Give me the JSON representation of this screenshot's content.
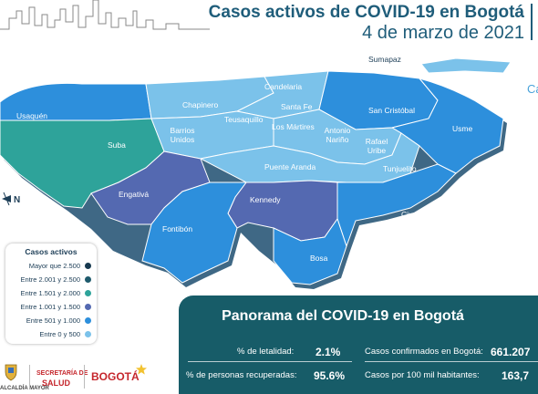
{
  "header": {
    "title": "Casos activos de COVID-19 en Bogotá",
    "subtitle": "4 de marzo de 2021",
    "side_fragment": "Ca"
  },
  "map": {
    "compass_letter": "N",
    "localities": [
      {
        "name": "Sumapaz",
        "level": "Entre 0 y 500"
      },
      {
        "name": "Candelaria",
        "level": "Entre 0 y 500"
      },
      {
        "name": "Usaquén",
        "level": "Entre 501 y 1.000"
      },
      {
        "name": "Chapinero",
        "level": "Entre 0 y 500"
      },
      {
        "name": "Santa Fe",
        "level": "Entre 0 y 500"
      },
      {
        "name": "San Cristóbal",
        "level": "Entre 501 y 1.000"
      },
      {
        "name": "Teusaquillo",
        "level": "Entre 0 y 500"
      },
      {
        "name": "Los Mártires",
        "level": "Entre 0 y 500"
      },
      {
        "name": "Antonio Nariño",
        "level": "Entre 0 y 500"
      },
      {
        "name": "Barrios Unidos",
        "level": "Entre 0 y 500"
      },
      {
        "name": "Usme",
        "level": "Entre 501 y 1.000"
      },
      {
        "name": "Suba",
        "level": "Entre 1.501 y 2.000"
      },
      {
        "name": "Rafael Uribe",
        "level": "Entre 0 y 500"
      },
      {
        "name": "Puente Aranda",
        "level": "Entre 0 y 500"
      },
      {
        "name": "Tunjuelito",
        "level": "Entre 0 y 500"
      },
      {
        "name": "Engativá",
        "level": "Entre 1.001 y 1.500"
      },
      {
        "name": "Kennedy",
        "level": "Entre 1.001 y 1.500"
      },
      {
        "name": "Ciudad Bolívar",
        "level": "Entre 501 y 1.000"
      },
      {
        "name": "Fontibón",
        "level": "Entre 501 y 1.000"
      },
      {
        "name": "Bosa",
        "level": "Entre 501 y 1.000"
      }
    ]
  },
  "legend": {
    "title": "Casos activos",
    "items": [
      {
        "label": "Mayor que 2.500",
        "color": "#17394f"
      },
      {
        "label": "Entre 2.001 y 2.500",
        "color": "#1e5a6c"
      },
      {
        "label": "Entre 1.501 y 2.000",
        "color": "#2ea39a"
      },
      {
        "label": "Entre 1.001 y 1.500",
        "color": "#5469b1"
      },
      {
        "label": "Entre 501 y 1.000",
        "color": "#2d8fdc"
      },
      {
        "label": "Entre 0 y 500",
        "color": "#7bc2ea"
      }
    ]
  },
  "panel": {
    "title": "Panorama del COVID-19 en Bogotá",
    "letalidad_label": "% de letalidad:",
    "letalidad_value": "2.1%",
    "recuperadas_label": "% de personas recuperadas:",
    "recuperadas_value": "95.6%",
    "confirmados_label": "Casos confirmados en Bogotá:",
    "confirmados_value": "661.207",
    "por100mil_label": "Casos por 100 mil habitantes:",
    "por100mil_value": "163,7"
  },
  "footer": {
    "alcaldia_text": "ALCALDÍA MAYOR",
    "secretaria_line1": "SECRETARÍA DE",
    "secretaria_line2": "SALUD",
    "bogota_logo": "BOGOTÁ"
  },
  "colors": {
    "title": "#1f5d7a",
    "panel_bg": "#175c68"
  }
}
